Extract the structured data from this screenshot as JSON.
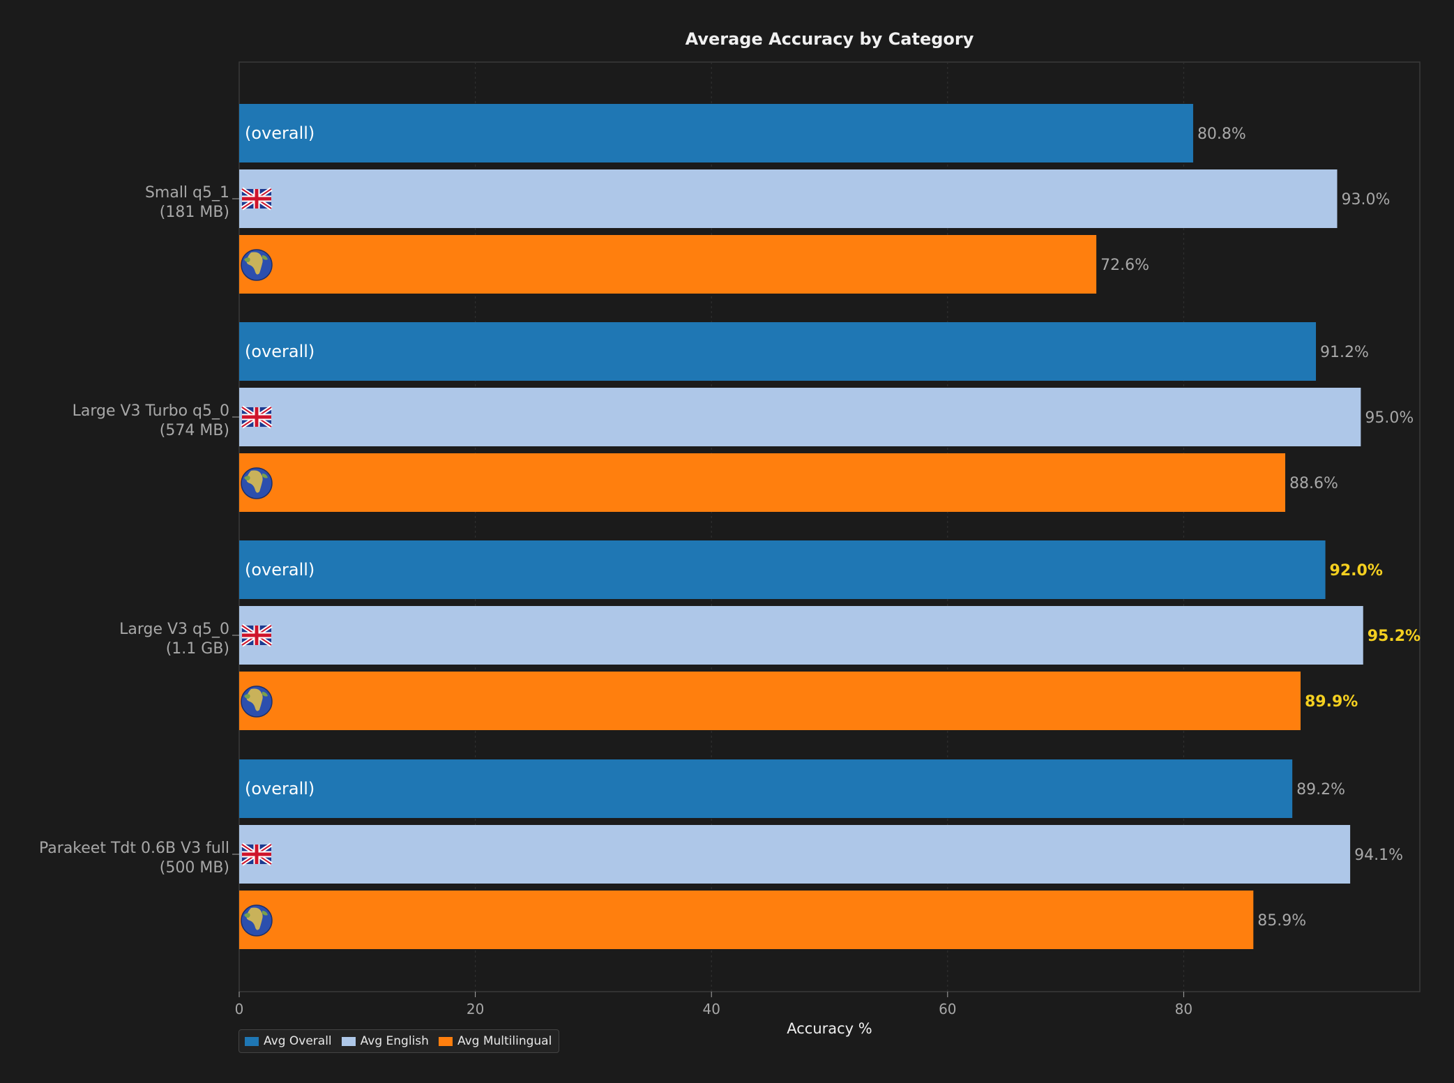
{
  "chart_data": {
    "type": "bar",
    "orientation": "horizontal",
    "title": "Average Accuracy by Category",
    "xlabel": "Accuracy %",
    "ylabel": "",
    "xlim": [
      0,
      100
    ],
    "xticks": [
      0,
      20,
      40,
      60,
      80
    ],
    "grid": true,
    "legend_position": "bottom-left",
    "categories": [
      {
        "name": "Small q5_1",
        "size": "(181 MB)"
      },
      {
        "name": "Large V3 Turbo q5_0",
        "size": "(574 MB)"
      },
      {
        "name": "Large V3 q5_0",
        "size": "(1.1 GB)"
      },
      {
        "name": "Parakeet Tdt 0.6B V3 full",
        "size": "(500 MB)"
      }
    ],
    "series": [
      {
        "name": "Avg Overall",
        "color": "#1f77b4",
        "bar_text": "(overall)",
        "icon": "",
        "values": [
          80.8,
          91.2,
          92.0,
          89.2
        ]
      },
      {
        "name": "Avg English",
        "color": "#aec7e8",
        "bar_text": "",
        "icon": "uk-flag-icon",
        "values": [
          93.0,
          95.0,
          95.2,
          94.1
        ]
      },
      {
        "name": "Avg Multilingual",
        "color": "#ff7f0e",
        "bar_text": "",
        "icon": "globe-icon",
        "values": [
          72.6,
          88.6,
          89.9,
          85.9
        ]
      }
    ],
    "value_labels": [
      [
        "80.8%",
        "93.0%",
        "72.6%"
      ],
      [
        "91.2%",
        "95.0%",
        "88.6%"
      ],
      [
        "92.0%",
        "95.2%",
        "89.9%"
      ],
      [
        "89.2%",
        "94.1%",
        "85.9%"
      ]
    ],
    "highlighted_category_index": 2,
    "highlight_color": "#f5d020",
    "label_color": "#a8a8a8"
  }
}
